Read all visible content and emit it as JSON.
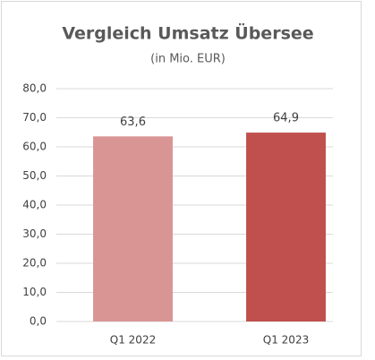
{
  "chart_data": {
    "type": "bar",
    "title": "Vergleich Umsatz Übersee",
    "subtitle": "(in Mio. EUR)",
    "categories": [
      "Q1 2022",
      "Q1 2023"
    ],
    "values": [
      63.6,
      64.9
    ],
    "value_labels": [
      "63,6",
      "64,9"
    ],
    "colors": [
      "#d99594",
      "#c0504d"
    ],
    "ylim": [
      0,
      80
    ],
    "yticks": [
      {
        "value": 0,
        "label": "0,0"
      },
      {
        "value": 10,
        "label": "10,0"
      },
      {
        "value": 20,
        "label": "20,0"
      },
      {
        "value": 30,
        "label": "30,0"
      },
      {
        "value": 40,
        "label": "40,0"
      },
      {
        "value": 50,
        "label": "50,0"
      },
      {
        "value": 60,
        "label": "60,0"
      },
      {
        "value": 70,
        "label": "70,0"
      },
      {
        "value": 80,
        "label": "80,0"
      }
    ],
    "grid": true
  }
}
